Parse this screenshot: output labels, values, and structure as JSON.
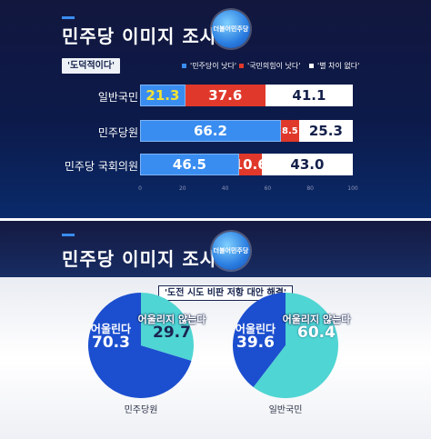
{
  "panel1": {
    "title": "민주당 이미지 조사",
    "unit": "(%)",
    "logo_text": "더불어민주당",
    "question": "'도덕적이다'",
    "legend": [
      {
        "label": "'민주당이 낫다'",
        "color": "#3a8df0"
      },
      {
        "label": "'국민의힘이 낫다'",
        "color": "#e0392b"
      },
      {
        "label": "'별 차이 없다'",
        "color": "#ffffff"
      }
    ]
  },
  "panel2": {
    "title": "민주당 이미지 조사",
    "unit": "(%)",
    "logo_text": "더불어민주당",
    "question": "'도전 시도 비판 저항 대안 해결'"
  },
  "chart_data": [
    {
      "type": "bar",
      "orientation": "horizontal",
      "stacked": true,
      "title": "민주당 이미지 조사",
      "subtitle": "'도덕적이다'",
      "unit": "(%)",
      "categories": [
        "일반국민",
        "민주당원",
        "민주당 국회의원"
      ],
      "series": [
        {
          "name": "'민주당이 낫다'",
          "values": [
            21.3,
            66.2,
            46.5
          ],
          "color": "#3a8df0"
        },
        {
          "name": "'국민의힘이 낫다'",
          "values": [
            37.6,
            8.5,
            10.6
          ],
          "color": "#e0392b"
        },
        {
          "name": "'별 차이 없다'",
          "values": [
            41.1,
            25.3,
            43.0
          ],
          "color": "#ffffff"
        }
      ],
      "xlim": [
        0,
        100
      ],
      "xticks": [
        0,
        20,
        40,
        60,
        80,
        100
      ],
      "value_label_colors": [
        "#f2e233",
        "#ffffff",
        "#ffffff",
        "#13204a"
      ],
      "legend_position": "top-right"
    },
    {
      "type": "pie",
      "title": "민주당 이미지 조사",
      "subtitle": "'도전 시도 비판 저항 대안 해결'",
      "charts": [
        {
          "name": "민주당원",
          "slices": [
            {
              "label": "어울린다",
              "value": 70.3,
              "color": "#1c4fcf",
              "value_color": "#ffffff"
            },
            {
              "label": "어울리지 않는다",
              "value": 29.7,
              "color": "#4fd5d3",
              "value_color": "#1b2552"
            }
          ]
        },
        {
          "name": "일반국민",
          "slices": [
            {
              "label": "어울린다",
              "value": 39.6,
              "color": "#1c4fcf",
              "value_color": "#ffffff"
            },
            {
              "label": "어울리지 않는다",
              "value": 60.4,
              "color": "#4fd5d3",
              "value_color": "#ffffff"
            }
          ]
        }
      ]
    }
  ]
}
